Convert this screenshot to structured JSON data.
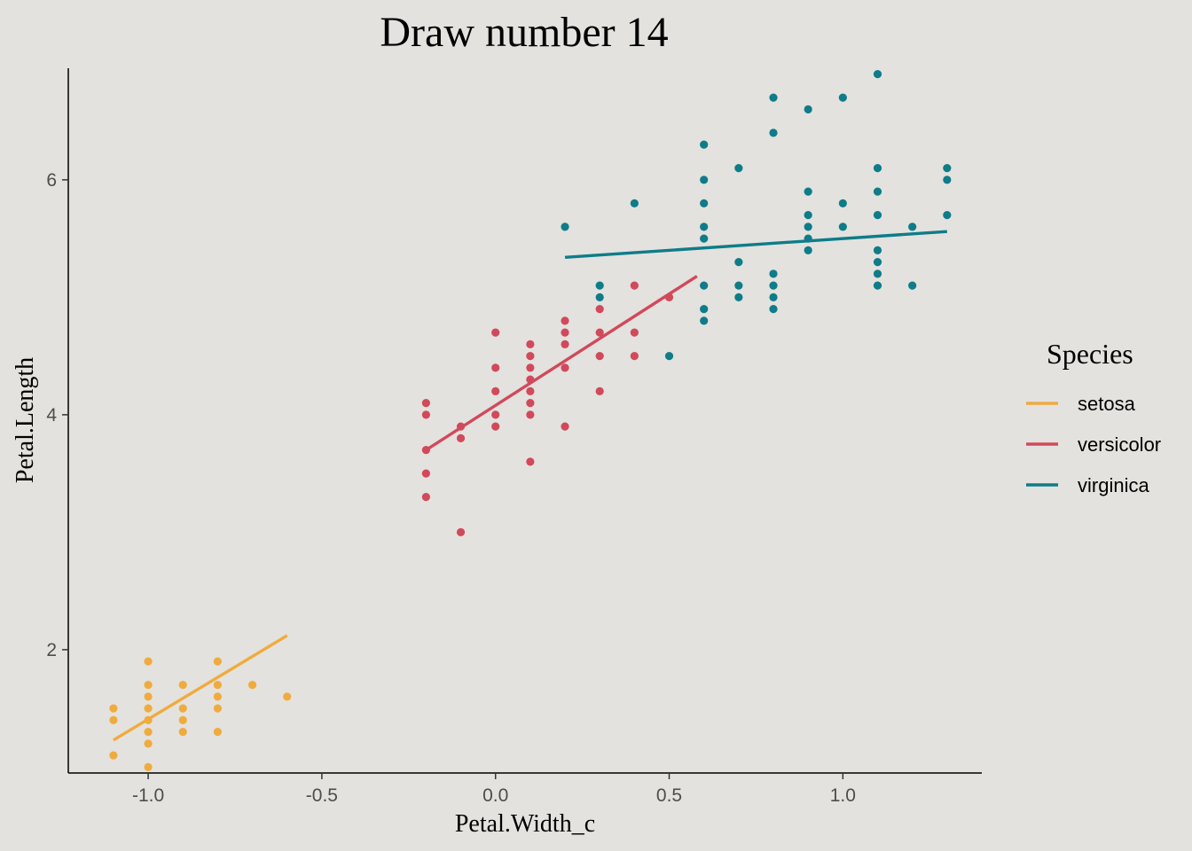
{
  "chart_data": {
    "type": "scatter",
    "title": "Draw number 14",
    "xlabel": "Petal.Width_c",
    "ylabel": "Petal.Length",
    "xlim": [
      -1.23,
      1.4
    ],
    "ylim": [
      0.95,
      6.95
    ],
    "xticks": [
      -1.0,
      -0.5,
      0.0,
      0.5,
      1.0
    ],
    "xtick_labels": [
      "-1.0",
      "-0.5",
      "0.0",
      "0.5",
      "1.0"
    ],
    "yticks": [
      2,
      4,
      6
    ],
    "ytick_labels": [
      "2",
      "4",
      "6"
    ],
    "grid": false,
    "legend": {
      "title": "Species",
      "placement": "right"
    },
    "series": [
      {
        "name": "setosa",
        "color": "#f0ab3e",
        "points": [
          [
            -1.1,
            1.1
          ],
          [
            -1.1,
            1.4
          ],
          [
            -1.1,
            1.5
          ],
          [
            -1.0,
            1.0
          ],
          [
            -1.0,
            1.2
          ],
          [
            -1.0,
            1.3
          ],
          [
            -1.0,
            1.4
          ],
          [
            -1.0,
            1.5
          ],
          [
            -1.0,
            1.6
          ],
          [
            -1.0,
            1.7
          ],
          [
            -1.0,
            1.9
          ],
          [
            -0.9,
            1.3
          ],
          [
            -0.9,
            1.4
          ],
          [
            -0.9,
            1.5
          ],
          [
            -0.9,
            1.7
          ],
          [
            -0.8,
            1.3
          ],
          [
            -0.8,
            1.5
          ],
          [
            -0.8,
            1.6
          ],
          [
            -0.8,
            1.7
          ],
          [
            -0.8,
            1.9
          ],
          [
            -0.7,
            1.7
          ],
          [
            -0.6,
            1.6
          ]
        ],
        "fit": [
          [
            -1.1,
            1.23
          ],
          [
            -0.6,
            2.12
          ]
        ]
      },
      {
        "name": "versicolor",
        "color": "#d1495b",
        "points": [
          [
            -0.2,
            3.3
          ],
          [
            -0.2,
            3.5
          ],
          [
            -0.2,
            3.7
          ],
          [
            -0.2,
            4.0
          ],
          [
            -0.2,
            4.1
          ],
          [
            -0.1,
            3.0
          ],
          [
            -0.1,
            3.8
          ],
          [
            -0.1,
            3.9
          ],
          [
            0.0,
            3.9
          ],
          [
            0.0,
            4.0
          ],
          [
            0.0,
            4.2
          ],
          [
            0.0,
            4.4
          ],
          [
            0.0,
            4.7
          ],
          [
            0.1,
            3.6
          ],
          [
            0.1,
            4.0
          ],
          [
            0.1,
            4.1
          ],
          [
            0.1,
            4.2
          ],
          [
            0.1,
            4.3
          ],
          [
            0.1,
            4.4
          ],
          [
            0.1,
            4.5
          ],
          [
            0.1,
            4.6
          ],
          [
            0.2,
            3.9
          ],
          [
            0.2,
            4.4
          ],
          [
            0.2,
            4.6
          ],
          [
            0.2,
            4.7
          ],
          [
            0.2,
            4.8
          ],
          [
            0.3,
            4.2
          ],
          [
            0.3,
            4.5
          ],
          [
            0.3,
            4.7
          ],
          [
            0.3,
            4.9
          ],
          [
            0.4,
            4.5
          ],
          [
            0.4,
            4.7
          ],
          [
            0.4,
            5.1
          ],
          [
            0.5,
            5.0
          ]
        ],
        "fit": [
          [
            -0.2,
            3.7
          ],
          [
            0.58,
            5.18
          ]
        ]
      },
      {
        "name": "virginica",
        "color": "#0e7c89",
        "points": [
          [
            0.2,
            5.6
          ],
          [
            0.3,
            5.0
          ],
          [
            0.3,
            5.1
          ],
          [
            0.4,
            5.8
          ],
          [
            0.5,
            4.5
          ],
          [
            0.6,
            4.8
          ],
          [
            0.6,
            4.9
          ],
          [
            0.6,
            5.1
          ],
          [
            0.6,
            5.5
          ],
          [
            0.6,
            5.6
          ],
          [
            0.6,
            5.8
          ],
          [
            0.6,
            6.0
          ],
          [
            0.6,
            6.3
          ],
          [
            0.7,
            5.0
          ],
          [
            0.7,
            5.1
          ],
          [
            0.7,
            5.3
          ],
          [
            0.7,
            6.1
          ],
          [
            0.8,
            4.9
          ],
          [
            0.8,
            5.0
          ],
          [
            0.8,
            5.1
          ],
          [
            0.8,
            5.2
          ],
          [
            0.8,
            6.4
          ],
          [
            0.8,
            6.7
          ],
          [
            0.9,
            5.4
          ],
          [
            0.9,
            5.5
          ],
          [
            0.9,
            5.6
          ],
          [
            0.9,
            5.7
          ],
          [
            0.9,
            5.9
          ],
          [
            0.9,
            6.6
          ],
          [
            1.0,
            5.6
          ],
          [
            1.0,
            5.8
          ],
          [
            1.0,
            6.7
          ],
          [
            1.1,
            5.1
          ],
          [
            1.1,
            5.2
          ],
          [
            1.1,
            5.3
          ],
          [
            1.1,
            5.4
          ],
          [
            1.1,
            5.7
          ],
          [
            1.1,
            5.9
          ],
          [
            1.1,
            6.1
          ],
          [
            1.1,
            6.9
          ],
          [
            1.2,
            5.1
          ],
          [
            1.2,
            5.6
          ],
          [
            1.3,
            5.7
          ],
          [
            1.3,
            6.0
          ],
          [
            1.3,
            6.1
          ]
        ],
        "fit": [
          [
            0.2,
            5.34
          ],
          [
            1.3,
            5.56
          ]
        ]
      }
    ]
  }
}
